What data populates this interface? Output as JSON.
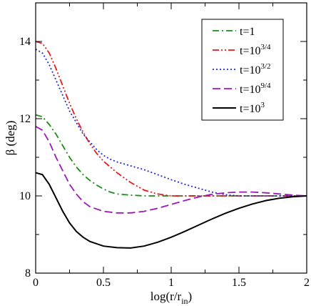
{
  "chart_data": {
    "type": "line",
    "xlabel": {
      "main": "log(r/r",
      "sub": "in",
      "close": ")"
    },
    "ylabel": "β (deg)",
    "xlim": [
      0,
      2
    ],
    "ylim": [
      8,
      15
    ],
    "x_ticks": [
      0,
      0.5,
      1,
      1.5,
      2
    ],
    "x_tick_labels": [
      "0",
      "0.5",
      "1",
      "1.5",
      "2"
    ],
    "y_ticks": [
      8,
      10,
      12,
      14
    ],
    "y_tick_labels": [
      "8",
      "10",
      "12",
      "14"
    ],
    "legend_position": "top-right",
    "grid": false,
    "series": [
      {
        "name": "t=1",
        "label_base": "t=1",
        "label_sup": "",
        "color": "#1a8c1a",
        "dash": "dashdot",
        "x": [
          0,
          0.05,
          0.1,
          0.15,
          0.2,
          0.25,
          0.3,
          0.35,
          0.4,
          0.45,
          0.5,
          0.55,
          0.6,
          0.7,
          0.8,
          0.9,
          1.0,
          1.2,
          1.4,
          1.6,
          1.8,
          2.0
        ],
        "y": [
          12.1,
          12.05,
          11.85,
          11.6,
          11.3,
          11.0,
          10.75,
          10.55,
          10.4,
          10.28,
          10.18,
          10.1,
          10.05,
          10.02,
          10.0,
          10.0,
          10.0,
          10.0,
          10.0,
          10.0,
          10.0,
          10.0
        ]
      },
      {
        "name": "t=10^3/4",
        "label_base": "t=10",
        "label_sup": "3/4",
        "color": "#e8191a",
        "dash": "dashdotdot",
        "x": [
          0,
          0.05,
          0.1,
          0.15,
          0.2,
          0.25,
          0.3,
          0.35,
          0.4,
          0.45,
          0.5,
          0.55,
          0.6,
          0.7,
          0.8,
          0.9,
          1.0,
          1.1,
          1.2,
          1.4,
          1.6,
          1.8,
          2.0
        ],
        "y": [
          14.0,
          13.95,
          13.7,
          13.3,
          12.85,
          12.4,
          12.0,
          11.65,
          11.35,
          11.1,
          10.9,
          10.75,
          10.6,
          10.35,
          10.15,
          10.05,
          10.0,
          10.0,
          10.0,
          10.0,
          10.0,
          10.0,
          10.0
        ]
      },
      {
        "name": "t=10^3/2",
        "label_base": "t=10",
        "label_sup": "3/2",
        "color": "#1f2bd6",
        "dash": "dotted",
        "x": [
          0,
          0.05,
          0.1,
          0.15,
          0.2,
          0.25,
          0.3,
          0.35,
          0.4,
          0.45,
          0.5,
          0.55,
          0.6,
          0.7,
          0.8,
          0.9,
          1.0,
          1.1,
          1.2,
          1.3,
          1.4,
          1.5,
          1.6,
          1.8,
          2.0
        ],
        "y": [
          13.8,
          13.7,
          13.4,
          13.0,
          12.6,
          12.2,
          11.9,
          11.6,
          11.4,
          11.2,
          11.05,
          10.95,
          10.88,
          10.78,
          10.68,
          10.55,
          10.42,
          10.3,
          10.2,
          10.1,
          10.03,
          10.0,
          10.0,
          10.0,
          10.0
        ]
      },
      {
        "name": "t=10^9/4",
        "label_base": "t=10",
        "label_sup": "9/4",
        "color": "#9a1ab8",
        "dash": "dashed",
        "x": [
          0,
          0.05,
          0.1,
          0.15,
          0.2,
          0.25,
          0.3,
          0.35,
          0.4,
          0.5,
          0.6,
          0.7,
          0.8,
          0.9,
          1.0,
          1.1,
          1.2,
          1.3,
          1.4,
          1.5,
          1.6,
          1.7,
          1.8,
          1.9,
          2.0
        ],
        "y": [
          11.8,
          11.7,
          11.4,
          11.0,
          10.65,
          10.3,
          10.05,
          9.85,
          9.72,
          9.6,
          9.56,
          9.56,
          9.6,
          9.68,
          9.78,
          9.88,
          9.97,
          10.04,
          10.08,
          10.1,
          10.1,
          10.08,
          10.05,
          10.02,
          10.0
        ]
      },
      {
        "name": "t=10^3",
        "label_base": "t=10",
        "label_sup": "3",
        "color": "#000000",
        "dash": "solid",
        "x": [
          0,
          0.05,
          0.1,
          0.15,
          0.2,
          0.25,
          0.3,
          0.35,
          0.4,
          0.5,
          0.6,
          0.7,
          0.8,
          0.9,
          1.0,
          1.1,
          1.2,
          1.3,
          1.4,
          1.5,
          1.6,
          1.7,
          1.8,
          1.9,
          2.0
        ],
        "y": [
          10.6,
          10.55,
          10.3,
          9.95,
          9.6,
          9.3,
          9.08,
          8.93,
          8.82,
          8.7,
          8.66,
          8.65,
          8.7,
          8.8,
          8.93,
          9.08,
          9.24,
          9.4,
          9.55,
          9.68,
          9.79,
          9.88,
          9.94,
          9.98,
          10.0
        ]
      }
    ]
  }
}
